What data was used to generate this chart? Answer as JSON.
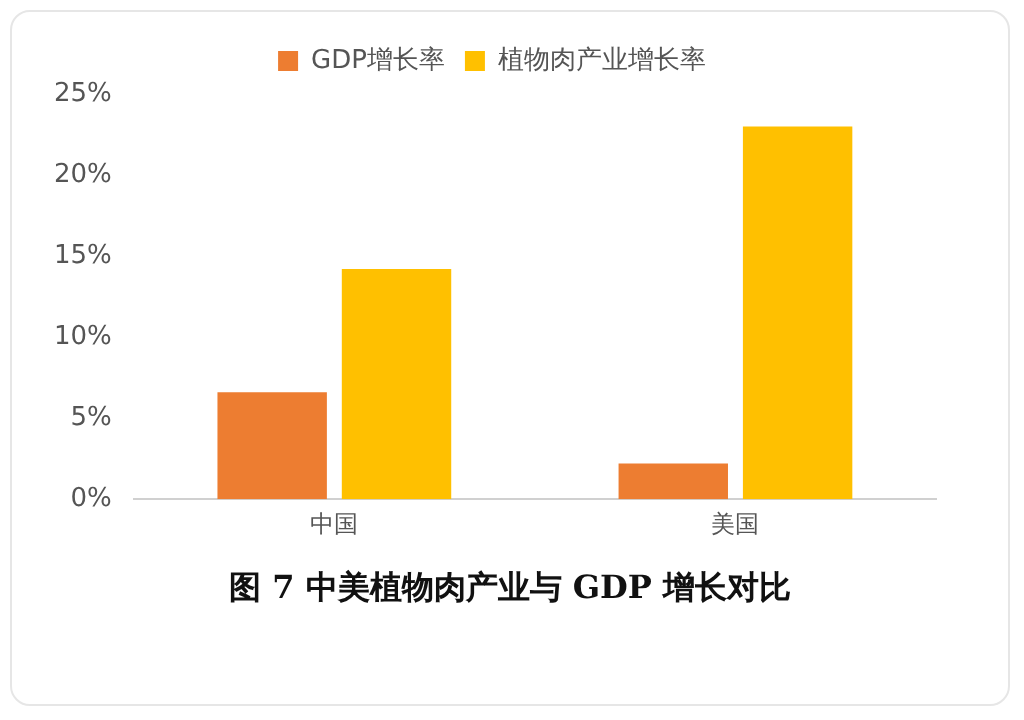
{
  "chart_data": {
    "type": "bar",
    "title": "图 7  中美植物肉产业与 GDP 增长对比",
    "categories": [
      "中国",
      "美国"
    ],
    "series": [
      {
        "name": "GDP增长率",
        "color": "#ed7d31",
        "values": [
          6.6,
          2.2
        ]
      },
      {
        "name": "植物肉产业增长率",
        "color": "#ffc000",
        "values": [
          14.2,
          23.0
        ]
      }
    ],
    "ylim": [
      0,
      25
    ],
    "yticks": [
      {
        "value": 0,
        "label": "0%"
      },
      {
        "value": 5,
        "label": "5%"
      },
      {
        "value": 10,
        "label": "10%"
      },
      {
        "value": 15,
        "label": "15%"
      },
      {
        "value": 20,
        "label": "20%"
      },
      {
        "value": 25,
        "label": "25%"
      }
    ],
    "grid": false,
    "legend": "top"
  }
}
